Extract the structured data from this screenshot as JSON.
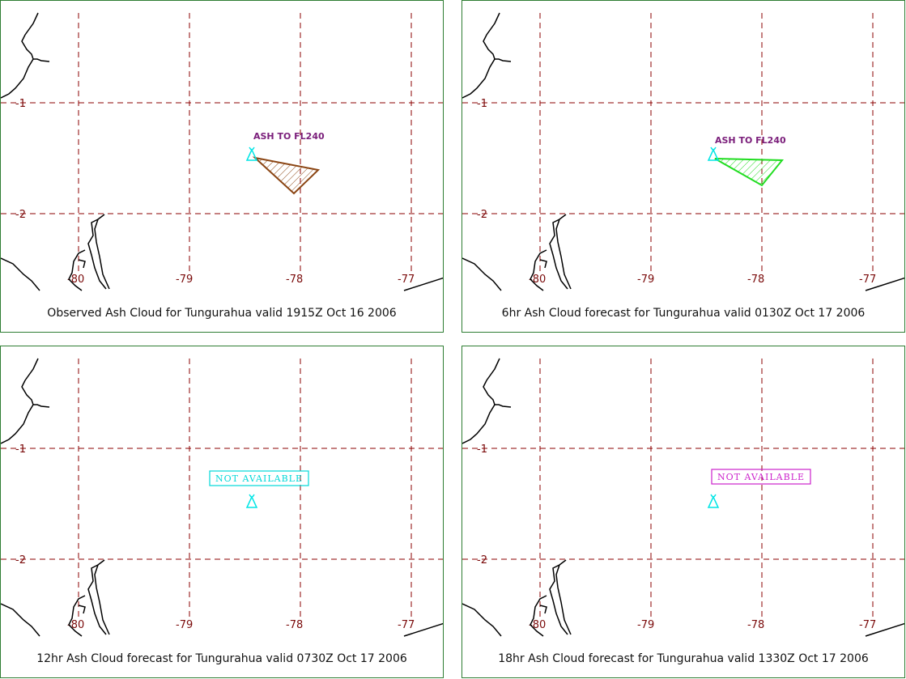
{
  "panels": [
    {
      "caption": "Observed Ash Cloud for Tungurahua valid 1915Z Oct 16 2006",
      "label": "ASH TO FL240",
      "label_color": "#7b1f7b",
      "polygon_color": "#8b4513",
      "status": "polygon"
    },
    {
      "caption": "6hr Ash Cloud forecast for Tungurahua valid 0130Z Oct 17 2006",
      "label": "ASH TO FL240",
      "label_color": "#7b1f7b",
      "polygon_color": "#22dd22",
      "status": "polygon"
    },
    {
      "caption": "12hr Ash Cloud forecast for Tungurahua valid 0730Z Oct 17 2006",
      "label": "NOT AVAILABLE",
      "label_color": "#00d8d8",
      "status": "not-available"
    },
    {
      "caption": "18hr Ash Cloud forecast for Tungurahua valid 1330Z Oct 17 2006",
      "label": "NOT AVAILABLE",
      "label_color": "#cc22cc",
      "status": "not-available"
    }
  ],
  "latitude_labels": [
    "-1",
    "-2"
  ],
  "longitude_labels": [
    "-80",
    "-79",
    "-78",
    "-77"
  ],
  "volcano_symbol_color": "#00e5e5",
  "grid_color": "#8b0000",
  "coastline_color": "#000000"
}
